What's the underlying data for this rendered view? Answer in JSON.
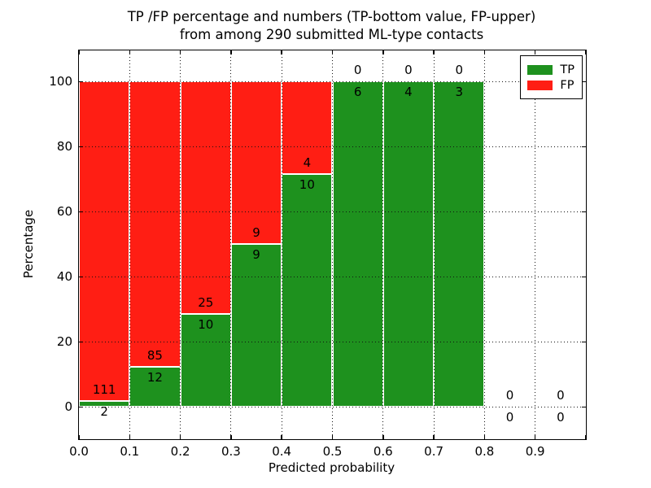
{
  "figure": {
    "title_line1": "TP /FP percentage and numbers (TP-bottom value, FP-upper)",
    "title_line2": "from among 290 submitted ML-type contacts",
    "xlabel": "Predicted probability",
    "ylabel": "Percentage"
  },
  "legend": {
    "position": "upper right",
    "entries": [
      {
        "label": "TP",
        "color": "#1e911e"
      },
      {
        "label": "FP",
        "color": "#ff1e14"
      }
    ]
  },
  "chart_data": {
    "type": "bar",
    "stacking": "percentage-stacked",
    "title": "TP /FP percentage and numbers (TP-bottom value, FP-upper) from among 290 submitted ML-type contacts",
    "xlabel": "Predicted probability",
    "ylabel": "Percentage",
    "xlim": [
      0.0,
      1.0
    ],
    "ylim": [
      -10,
      110
    ],
    "xtick_labels": [
      "0.0",
      "0.1",
      "0.2",
      "0.3",
      "0.4",
      "0.5",
      "0.6",
      "0.7",
      "0.8",
      "0.9"
    ],
    "yticks": [
      0,
      20,
      40,
      60,
      80,
      100
    ],
    "grid_style": "dotted",
    "legend_position": "upper right",
    "total_contacts": 290,
    "bin_width": 0.1,
    "bin_starts": [
      0.0,
      0.1,
      0.2,
      0.3,
      0.4,
      0.5,
      0.6,
      0.7,
      0.8,
      0.9
    ],
    "series": [
      {
        "name": "TP",
        "color": "#1e911e",
        "counts": [
          2,
          12,
          10,
          9,
          10,
          6,
          4,
          3,
          0,
          0
        ]
      },
      {
        "name": "FP",
        "color": "#ff1e14",
        "counts": [
          111,
          85,
          25,
          9,
          4,
          0,
          0,
          0,
          0,
          0
        ]
      }
    ],
    "tp_percent": [
      1.77,
      12.37,
      28.57,
      50.0,
      71.43,
      100.0,
      100.0,
      100.0,
      0.0,
      0.0
    ]
  },
  "colors": {
    "tp": "#1e911e",
    "fp": "#ff1e14",
    "axis": "#000000",
    "grid": "#111111",
    "bar_edge": "#ffffff",
    "background": "#ffffff"
  }
}
